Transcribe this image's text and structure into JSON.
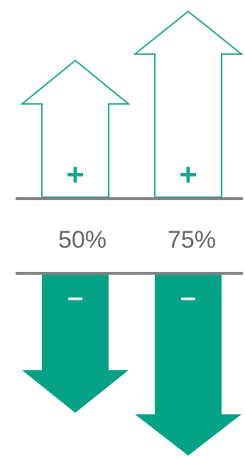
{
  "colors": {
    "accent": "#05a386",
    "outline": "#1aa78a",
    "divider": "#808285",
    "label_text": "#666666",
    "background": "#ffffff"
  },
  "arrows_up": [
    {
      "symbol": "+",
      "icon": "up-arrow-outline-icon"
    },
    {
      "symbol": "+",
      "icon": "up-arrow-outline-icon"
    }
  ],
  "labels": [
    "50%",
    "75%"
  ],
  "arrows_down": [
    {
      "symbol": "–",
      "icon": "down-arrow-filled-icon"
    },
    {
      "symbol": "–",
      "icon": "down-arrow-filled-icon"
    }
  ]
}
